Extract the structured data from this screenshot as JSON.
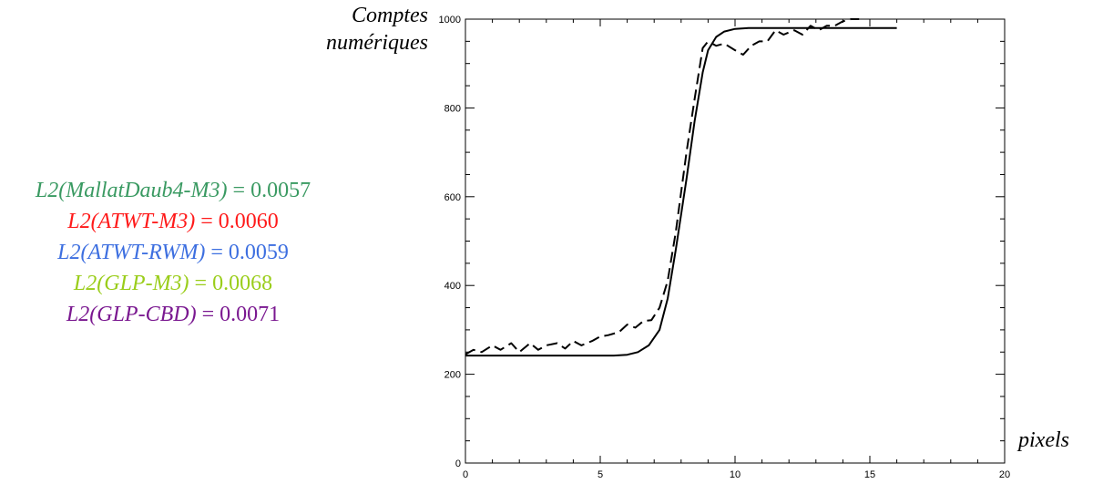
{
  "chart_data": {
    "type": "line",
    "ylabel_lines": [
      "Comptes",
      "numériques"
    ],
    "xlabel": "pixels",
    "xlim": [
      0,
      20
    ],
    "ylim": [
      0,
      1000
    ],
    "x_ticks": [
      "0",
      "5",
      "10",
      "15",
      "20"
    ],
    "y_ticks": [
      "0",
      "200",
      "400",
      "600",
      "800",
      "1000"
    ],
    "grid": false,
    "series": [
      {
        "style": "solid",
        "x": [
          0,
          1,
          2,
          3,
          4,
          5,
          5.5,
          6,
          6.4,
          6.8,
          7.2,
          7.5,
          7.8,
          8.0,
          8.2,
          8.5,
          8.8,
          9.0,
          9.3,
          9.6,
          10,
          10.5,
          11,
          12,
          13,
          14,
          15,
          16
        ],
        "y": [
          242,
          242,
          242,
          242,
          242,
          242,
          242,
          244,
          250,
          265,
          300,
          370,
          480,
          560,
          640,
          770,
          880,
          930,
          960,
          972,
          978,
          980,
          980,
          980,
          980,
          980,
          980,
          980
        ]
      },
      {
        "style": "dashed",
        "x": [
          0,
          0.3,
          0.6,
          1.0,
          1.3,
          1.7,
          2.0,
          2.4,
          2.7,
          3.0,
          3.4,
          3.7,
          4.0,
          4.3,
          4.7,
          5.0,
          5.3,
          5.7,
          6.0,
          6.3,
          6.6,
          6.9,
          7.2,
          7.5,
          7.8,
          8.0,
          8.2,
          8.5,
          8.8,
          9.0,
          9.3,
          9.6,
          10.0,
          10.3,
          10.6,
          10.9,
          11.2,
          11.5,
          11.8,
          12.2,
          12.5,
          12.8,
          13.1,
          13.4,
          13.7,
          14.0,
          14.3,
          14.6
        ],
        "y": [
          245,
          255,
          250,
          265,
          255,
          270,
          250,
          270,
          255,
          265,
          270,
          258,
          275,
          265,
          275,
          285,
          288,
          295,
          312,
          305,
          320,
          322,
          350,
          410,
          520,
          610,
          700,
          820,
          935,
          950,
          940,
          945,
          930,
          920,
          940,
          950,
          950,
          975,
          965,
          975,
          965,
          985,
          975,
          985,
          985,
          995,
          1003,
          1005
        ]
      }
    ]
  },
  "legend": [
    {
      "label": "L2(MallatDaub4-M3)",
      "eq": " = ",
      "value": "0.0057",
      "color": "#3a9a62"
    },
    {
      "label": "L2(ATWT-M3)",
      "eq": " = ",
      "value": "0.0060",
      "color": "#ff1a1a"
    },
    {
      "label": "L2(ATWT-RWM)",
      "eq": " = ",
      "value": "0.0059",
      "color": "#3d6fe0"
    },
    {
      "label": "L2(GLP-M3)",
      "eq": " = ",
      "value": "0.0068",
      "color": "#9acd1a"
    },
    {
      "label": "L2(GLP-CBD)",
      "eq": " = ",
      "value": "0.0071",
      "color": "#7a1890"
    }
  ]
}
